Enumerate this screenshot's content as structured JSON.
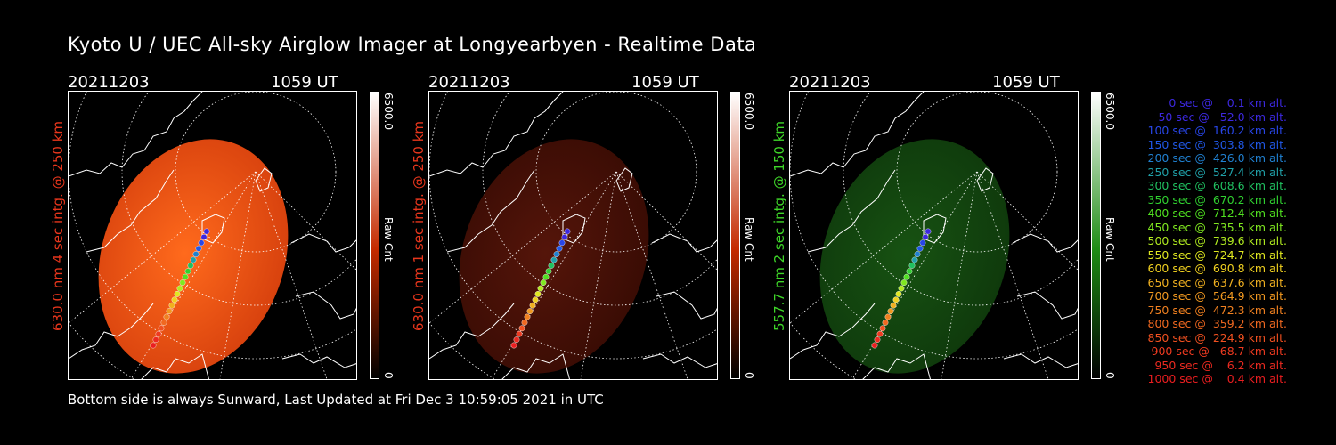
{
  "title": "Kyoto U / UEC All-sky Airglow Imager at Longyearbyen - Realtime Data",
  "footer": "Bottom side is always Sunward, Last Updated at Fri Dec  3 10:59:05 2021 in UTC",
  "panels": [
    {
      "date": "20211203",
      "time": "1059 UT",
      "ylabel": "630.0 nm 4 sec intg. @ 250 km",
      "label_color": "#e8361c",
      "cbar_max": "6500.0",
      "cbar_unit": "Raw Cnt",
      "cbar_min": "0",
      "sky_color": "#d8420e",
      "sky_color2": "#ff6a1c",
      "cbar_color": "#c42a00",
      "brightness": 1.0
    },
    {
      "date": "20211203",
      "time": "1059 UT",
      "ylabel": "630.0 nm 1 sec intg. @ 250 km",
      "label_color": "#e8361c",
      "cbar_max": "6500.0",
      "cbar_unit": "Raw Cnt",
      "cbar_min": "0",
      "sky_color": "#3a0c04",
      "sky_color2": "#55150a",
      "cbar_color": "#c42a00",
      "brightness": 0.3
    },
    {
      "date": "20211203",
      "time": "1059 UT",
      "ylabel": "557.7 nm 2 sec intg. @ 150 km",
      "label_color": "#3ed628",
      "cbar_max": "6500.0",
      "cbar_unit": "Raw Cnt",
      "cbar_min": "0",
      "sky_color": "#0f3a0c",
      "sky_color2": "#175212",
      "cbar_color": "#1e8c14",
      "brightness": 0.3
    }
  ],
  "legend": [
    {
      "text": "   0 sec @    0.1 km alt.",
      "color": "#3c28e0"
    },
    {
      "text": "  50 sec @   52.0 km alt.",
      "color": "#3c28e0"
    },
    {
      "text": " 100 sec @  160.2 km alt.",
      "color": "#2846e8"
    },
    {
      "text": " 150 sec @  303.8 km alt.",
      "color": "#2058e8"
    },
    {
      "text": " 200 sec @  426.0 km alt.",
      "color": "#2080d0"
    },
    {
      "text": " 250 sec @  527.4 km alt.",
      "color": "#20a0a8"
    },
    {
      "text": " 300 sec @  608.6 km alt.",
      "color": "#20c060"
    },
    {
      "text": " 350 sec @  670.2 km alt.",
      "color": "#30d030"
    },
    {
      "text": " 400 sec @  712.4 km alt.",
      "color": "#50e020"
    },
    {
      "text": " 450 sec @  735.5 km alt.",
      "color": "#80e820"
    },
    {
      "text": " 500 sec @  739.6 km alt.",
      "color": "#b0ea20"
    },
    {
      "text": " 550 sec @  724.7 km alt.",
      "color": "#e0e820"
    },
    {
      "text": " 600 sec @  690.8 km alt.",
      "color": "#f0d020"
    },
    {
      "text": " 650 sec @  637.6 km alt.",
      "color": "#f0b020"
    },
    {
      "text": " 700 sec @  564.9 km alt.",
      "color": "#f09820"
    },
    {
      "text": " 750 sec @  472.3 km alt.",
      "color": "#f08020"
    },
    {
      "text": " 800 sec @  359.2 km alt.",
      "color": "#f06820"
    },
    {
      "text": " 850 sec @  224.9 km alt.",
      "color": "#f05020"
    },
    {
      "text": " 900 sec @   68.7 km alt.",
      "color": "#ee3a20"
    },
    {
      "text": " 950 sec @    6.2 km alt.",
      "color": "#ec2a20"
    },
    {
      "text": "1000 sec @    0.4 km alt.",
      "color": "#ea1e20"
    }
  ]
}
